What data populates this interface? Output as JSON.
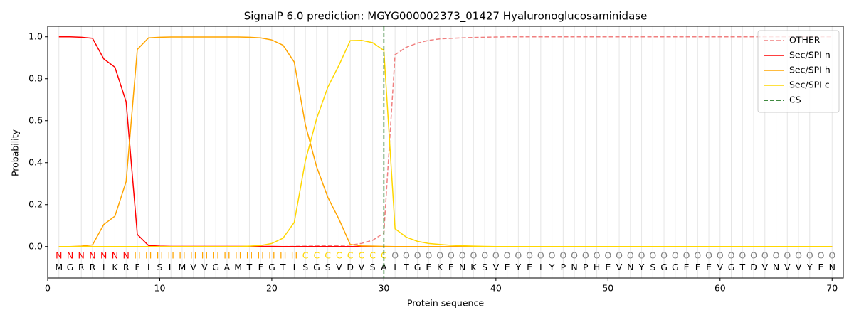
{
  "chart_data": {
    "type": "line",
    "title": "SignalP 6.0 prediction: MGYG000002373_01427 Hyaluronoglucosaminidase",
    "x_label": "Protein sequence",
    "y_label": "Probability",
    "x": [
      1,
      2,
      3,
      4,
      5,
      6,
      7,
      8,
      9,
      10,
      11,
      12,
      13,
      14,
      15,
      16,
      17,
      18,
      19,
      20,
      21,
      22,
      23,
      24,
      25,
      26,
      27,
      28,
      29,
      30,
      31,
      32,
      33,
      34,
      35,
      36,
      37,
      38,
      39,
      40,
      41,
      42,
      43,
      44,
      45,
      46,
      47,
      48,
      49,
      50,
      51,
      52,
      53,
      54,
      55,
      56,
      57,
      58,
      59,
      60,
      61,
      62,
      63,
      64,
      65,
      66,
      67,
      68,
      69,
      70
    ],
    "sequence": [
      "M",
      "G",
      "R",
      "R",
      "I",
      "K",
      "R",
      "F",
      "I",
      "S",
      "L",
      "M",
      "V",
      "V",
      "G",
      "A",
      "M",
      "T",
      "F",
      "G",
      "T",
      "I",
      "S",
      "G",
      "S",
      "V",
      "D",
      "V",
      "S",
      "A",
      "I",
      "T",
      "G",
      "E",
      "K",
      "E",
      "N",
      "K",
      "S",
      "V",
      "E",
      "Y",
      "E",
      "I",
      "Y",
      "P",
      "N",
      "P",
      "H",
      "E",
      "V",
      "N",
      "Y",
      "S",
      "G",
      "G",
      "E",
      "F",
      "E",
      "V",
      "G",
      "T",
      "D",
      "V",
      "N",
      "V",
      "V",
      "Y",
      "E",
      "N"
    ],
    "labels": [
      "N",
      "N",
      "N",
      "N",
      "N",
      "N",
      "N",
      "H",
      "H",
      "H",
      "H",
      "H",
      "H",
      "H",
      "H",
      "H",
      "H",
      "H",
      "H",
      "H",
      "H",
      "H",
      "C",
      "C",
      "C",
      "C",
      "C",
      "C",
      "C",
      "C",
      "O",
      "O",
      "O",
      "O",
      "O",
      "O",
      "O",
      "O",
      "O",
      "O",
      "O",
      "O",
      "O",
      "O",
      "O",
      "O",
      "O",
      "O",
      "O",
      "O",
      "O",
      "O",
      "O",
      "O",
      "O",
      "O",
      "O",
      "O",
      "O",
      "O",
      "O",
      "O",
      "O",
      "O",
      "O",
      "O",
      "O",
      "O",
      "O",
      "O"
    ],
    "label_colors": {
      "N": "#ff0000",
      "H": "#ffa500",
      "C": "#ffd700",
      "O": "#808080"
    },
    "series": [
      {
        "name": "OTHER",
        "color": "#f08080",
        "linestyle": "dashed",
        "values": [
          0,
          0,
          0,
          0,
          0,
          0,
          0,
          0,
          0,
          0,
          0,
          0,
          0,
          0,
          0,
          0,
          0,
          0,
          0,
          0,
          0,
          0.001,
          0.002,
          0.003,
          0.004,
          0.005,
          0.007,
          0.015,
          0.03,
          0.065,
          0.915,
          0.95,
          0.97,
          0.983,
          0.99,
          0.993,
          0.995,
          0.997,
          0.998,
          0.999,
          1,
          1,
          1,
          1,
          1,
          1,
          1,
          1,
          1,
          1,
          1,
          1,
          1,
          1,
          1,
          1,
          1,
          1,
          1,
          1,
          1,
          1,
          1,
          1,
          1,
          1,
          1,
          1,
          1,
          1
        ]
      },
      {
        "name": "Sec/SPI n",
        "color": "#ff0000",
        "linestyle": "solid",
        "values": [
          1.0,
          1.0,
          0.998,
          0.993,
          0.895,
          0.855,
          0.69,
          0.058,
          0.005,
          0.002,
          0.001,
          0.001,
          0.001,
          0.001,
          0.001,
          0.001,
          0.001,
          0.001,
          0.001,
          0.001,
          0,
          0,
          0,
          0,
          0,
          0,
          0,
          0,
          0,
          0,
          0,
          0,
          0,
          0,
          0,
          0,
          0,
          0,
          0,
          0,
          0,
          0,
          0,
          0,
          0,
          0,
          0,
          0,
          0,
          0,
          0,
          0,
          0,
          0,
          0,
          0,
          0,
          0,
          0,
          0,
          0,
          0,
          0,
          0,
          0,
          0,
          0,
          0,
          0,
          0
        ]
      },
      {
        "name": "Sec/SPI h",
        "color": "#ffa500",
        "linestyle": "solid",
        "values": [
          0,
          0,
          0.002,
          0.008,
          0.105,
          0.145,
          0.31,
          0.94,
          0.995,
          0.998,
          0.999,
          0.999,
          0.999,
          0.999,
          0.999,
          0.999,
          0.999,
          0.998,
          0.995,
          0.985,
          0.96,
          0.88,
          0.58,
          0.38,
          0.235,
          0.13,
          0.01,
          0.003,
          0.002,
          0.001,
          0,
          0,
          0,
          0,
          0,
          0,
          0,
          0,
          0,
          0,
          0,
          0,
          0,
          0,
          0,
          0,
          0,
          0,
          0,
          0,
          0,
          0,
          0,
          0,
          0,
          0,
          0,
          0,
          0,
          0,
          0,
          0,
          0,
          0,
          0,
          0,
          0,
          0,
          0,
          0
        ]
      },
      {
        "name": "Sec/SPI c",
        "color": "#ffd700",
        "linestyle": "solid",
        "values": [
          0,
          0,
          0,
          0,
          0,
          0,
          0,
          0,
          0,
          0,
          0,
          0,
          0,
          0,
          0,
          0,
          0,
          0.002,
          0.005,
          0.015,
          0.04,
          0.115,
          0.41,
          0.61,
          0.76,
          0.865,
          0.982,
          0.983,
          0.972,
          0.935,
          0.085,
          0.045,
          0.025,
          0.015,
          0.01,
          0.006,
          0.004,
          0.002,
          0.001,
          0,
          0,
          0,
          0,
          0,
          0,
          0,
          0,
          0,
          0,
          0,
          0,
          0,
          0,
          0,
          0,
          0,
          0,
          0,
          0,
          0,
          0,
          0,
          0,
          0,
          0,
          0,
          0,
          0,
          0,
          0
        ]
      }
    ],
    "cs": {
      "name": "CS",
      "x": 30,
      "color": "#006400"
    },
    "xlim": [
      0,
      71
    ],
    "xticks": [
      0,
      10,
      20,
      30,
      40,
      50,
      60,
      70
    ],
    "ylim": [
      -0.15,
      1.05
    ],
    "yticks": [
      {
        "value": 0,
        "label": "0.0"
      },
      {
        "value": 0.2,
        "label": "0.2"
      },
      {
        "value": 0.4,
        "label": "0.4"
      },
      {
        "value": 0.6,
        "label": "0.6"
      },
      {
        "value": 0.8,
        "label": "0.8"
      },
      {
        "value": 1,
        "label": "1.0"
      }
    ],
    "legend": "upper right"
  }
}
